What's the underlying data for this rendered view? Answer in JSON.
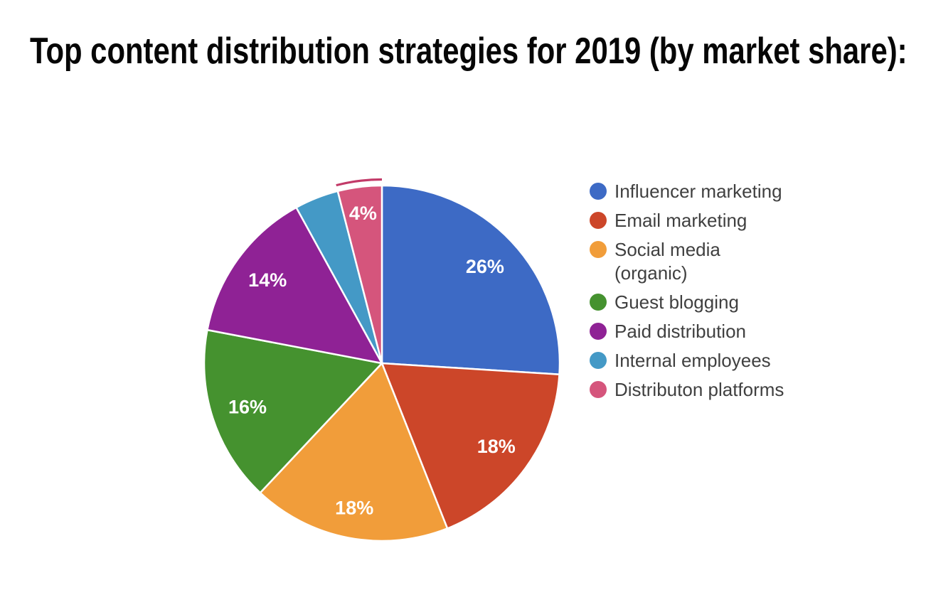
{
  "title": {
    "text": "Top content distribution strategies for 2019 (by market share):"
  },
  "chart_data": {
    "type": "pie",
    "title": "Top content distribution strategies for 2019 (by market share):",
    "start_angle": "12 o'clock, clockwise",
    "legend_position": "right",
    "background": "#ffffff",
    "slice_separator_color": "#ffffff",
    "data_label_color": "#ffffff",
    "legend_text_color": "#404040",
    "slices": [
      {
        "label": "Influencer marketing",
        "value_pct": 26,
        "color": "#3D6AC5",
        "data_label": "26%"
      },
      {
        "label": "Email marketing",
        "value_pct": 18,
        "color": "#CC4629",
        "data_label": "18%"
      },
      {
        "label": "Social media (organic)",
        "value_pct": 18,
        "color": "#F19D3A",
        "data_label": "18%"
      },
      {
        "label": "Guest blogging",
        "value_pct": 16,
        "color": "#45922F",
        "data_label": "16%"
      },
      {
        "label": "Paid distribution",
        "value_pct": 14,
        "color": "#8F2295",
        "data_label": "14%"
      },
      {
        "label": "Internal employees",
        "value_pct": 4,
        "color": "#4499C6",
        "data_label": ""
      },
      {
        "label": "Distributon platforms",
        "value_pct": 4,
        "color": "#D5557C",
        "data_label": "4%",
        "selected": true,
        "selection_ring_color": "#C23A68"
      }
    ],
    "legend": [
      {
        "lines": [
          "Influencer marketing"
        ],
        "color": "#3D6AC5"
      },
      {
        "lines": [
          "Email marketing"
        ],
        "color": "#CC4629"
      },
      {
        "lines": [
          "Social media",
          "(organic)"
        ],
        "color": "#F19D3A"
      },
      {
        "lines": [
          "Guest blogging"
        ],
        "color": "#45922F"
      },
      {
        "lines": [
          "Paid distribution"
        ],
        "color": "#8F2295"
      },
      {
        "lines": [
          "Internal employees"
        ],
        "color": "#4499C6"
      },
      {
        "lines": [
          "Distributon platforms"
        ],
        "color": "#D5557C"
      }
    ]
  }
}
